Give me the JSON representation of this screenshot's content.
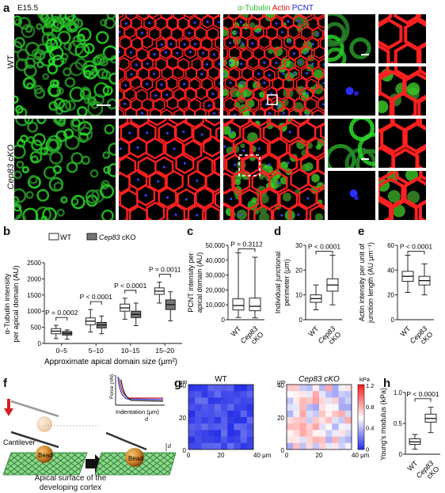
{
  "panel_a": {
    "letter": "a",
    "stage": "E15.5",
    "channels": [
      {
        "text": "α-Tubulin",
        "color": "#2fbf2f"
      },
      {
        "text": "Actin",
        "color": "#e01010"
      },
      {
        "text": "PCNT",
        "color": "#2020d0"
      }
    ],
    "rows": [
      "WT",
      "Cep83 cKO"
    ]
  },
  "panel_b": {
    "letter": "b",
    "legend": [
      "WT",
      "Cep83 cKO"
    ],
    "ylabel": "α-Tubulin intensity per apical domain (AU)",
    "xlabel": "Approximate apical domain size (μm²)",
    "categories": [
      "0–5",
      "5–10",
      "10–15",
      "15–20"
    ],
    "pvalues": [
      "P = 0.0002",
      "P < 0.0001",
      "P < 0.0001",
      "P = 0.0011"
    ]
  },
  "panel_c": {
    "letter": "c",
    "ylabel": "PCNT intensity per apical domain (AU)",
    "pvalue": "P = 0.3112",
    "groups": [
      "WT",
      "Cep83 cKO"
    ]
  },
  "panel_d": {
    "letter": "d",
    "ylabel": "Individual junctional perimeter (μm)",
    "pvalue": "P < 0.0001",
    "groups": [
      "WT",
      "Cep83 cKO"
    ]
  },
  "panel_e": {
    "letter": "e",
    "ylabel": "Actin intensity per unit of junction length (AU μm⁻¹)",
    "pvalue": "P < 0.0001",
    "groups": [
      "WT",
      "Cep83 cKO"
    ]
  },
  "panel_f": {
    "letter": "f",
    "labels": {
      "cantilever": "Cantilever",
      "bead": "Bead",
      "bead2": "Bead",
      "surface": "Apical surface of the developing cortex",
      "force": "Force (nN)",
      "indentation": "Indentation (μm)",
      "d": "d"
    }
  },
  "panel_g": {
    "letter": "g",
    "maps": [
      "WT",
      "Cep83 cKO"
    ],
    "unit_axis": "μm",
    "colorbar_unit": "kPa",
    "colorbar_ticks": [
      "1.2",
      "0.8",
      "0.4",
      "0"
    ],
    "yticks": [
      "40",
      "20",
      "0"
    ],
    "xticks": [
      "0",
      "20",
      "40 μm"
    ]
  },
  "panel_h": {
    "letter": "h",
    "ylabel": "Young's modulus (kPa)",
    "pvalue": "P < 0.0001",
    "groups": [
      "WT",
      "Cep83 cKO"
    ]
  },
  "chart_data": [
    {
      "type": "box",
      "panel": "b",
      "categories": [
        "0–5",
        "5–10",
        "10–15",
        "15–20"
      ],
      "ylabel": "α-Tubulin intensity per apical domain (AU)",
      "xlabel": "Approximate apical domain size (μm²)",
      "ylim": [
        0,
        2500
      ],
      "yticks": [
        0,
        500,
        1000,
        1500,
        2000,
        2500
      ],
      "series": [
        {
          "name": "WT",
          "color": "#ffffff",
          "boxes": [
            {
              "min": 150,
              "q1": 300,
              "median": 380,
              "q3": 460,
              "max": 560
            },
            {
              "min": 350,
              "q1": 580,
              "median": 690,
              "q3": 790,
              "max": 1050
            },
            {
              "min": 750,
              "q1": 1000,
              "median": 1100,
              "q3": 1220,
              "max": 1400
            },
            {
              "min": 1250,
              "q1": 1520,
              "median": 1620,
              "q3": 1720,
              "max": 1900
            }
          ]
        },
        {
          "name": "Cep83 cKO",
          "color": "#777777",
          "boxes": [
            {
              "min": 130,
              "q1": 260,
              "median": 310,
              "q3": 370,
              "max": 420
            },
            {
              "min": 300,
              "q1": 480,
              "median": 570,
              "q3": 650,
              "max": 850
            },
            {
              "min": 550,
              "q1": 800,
              "median": 900,
              "q3": 1000,
              "max": 1250
            },
            {
              "min": 700,
              "q1": 1050,
              "median": 1200,
              "q3": 1350,
              "max": 1600
            }
          ]
        }
      ]
    },
    {
      "type": "box",
      "panel": "c",
      "categories": [
        "WT",
        "Cep83 cKO"
      ],
      "ylim": [
        0,
        50000
      ],
      "yticks": [
        0,
        10000,
        20000,
        30000,
        40000,
        50000
      ],
      "ytick_labels": [
        "0",
        "10,000",
        "20,000",
        "30,000",
        "40,000",
        "50,000"
      ],
      "boxes": [
        {
          "min": 1500,
          "q1": 6500,
          "median": 9500,
          "q3": 14000,
          "max": 45000
        },
        {
          "min": 1200,
          "q1": 6000,
          "median": 9000,
          "q3": 14500,
          "max": 42000
        }
      ]
    },
    {
      "type": "box",
      "panel": "d",
      "categories": [
        "WT",
        "Cep83 cKO"
      ],
      "ylim": [
        0,
        30
      ],
      "yticks": [
        0,
        10,
        20,
        30
      ],
      "boxes": [
        {
          "min": 4,
          "q1": 7,
          "median": 8.5,
          "q3": 10,
          "max": 14
        },
        {
          "min": 6,
          "q1": 11.5,
          "median": 14,
          "q3": 16.5,
          "max": 26
        }
      ]
    },
    {
      "type": "box",
      "panel": "e",
      "categories": [
        "WT",
        "Cep83 cKO"
      ],
      "ylim": [
        0,
        60
      ],
      "yticks": [
        0,
        20,
        40,
        60
      ],
      "boxes": [
        {
          "min": 22,
          "q1": 31,
          "median": 35,
          "q3": 39,
          "max": 52
        },
        {
          "min": 20,
          "q1": 28,
          "median": 31.5,
          "q3": 35,
          "max": 45
        }
      ]
    },
    {
      "type": "box",
      "panel": "h",
      "categories": [
        "WT",
        "Cep83 cKO"
      ],
      "ylim": [
        0,
        1.0
      ],
      "yticks": [
        0,
        0.5,
        1.0
      ],
      "ytick_labels": [
        "0",
        "0.5",
        "1.0"
      ],
      "boxes": [
        {
          "min": 0.08,
          "q1": 0.16,
          "median": 0.2,
          "q3": 0.25,
          "max": 0.32
        },
        {
          "min": 0.35,
          "q1": 0.52,
          "median": 0.58,
          "q3": 0.65,
          "max": 0.76
        }
      ]
    }
  ]
}
